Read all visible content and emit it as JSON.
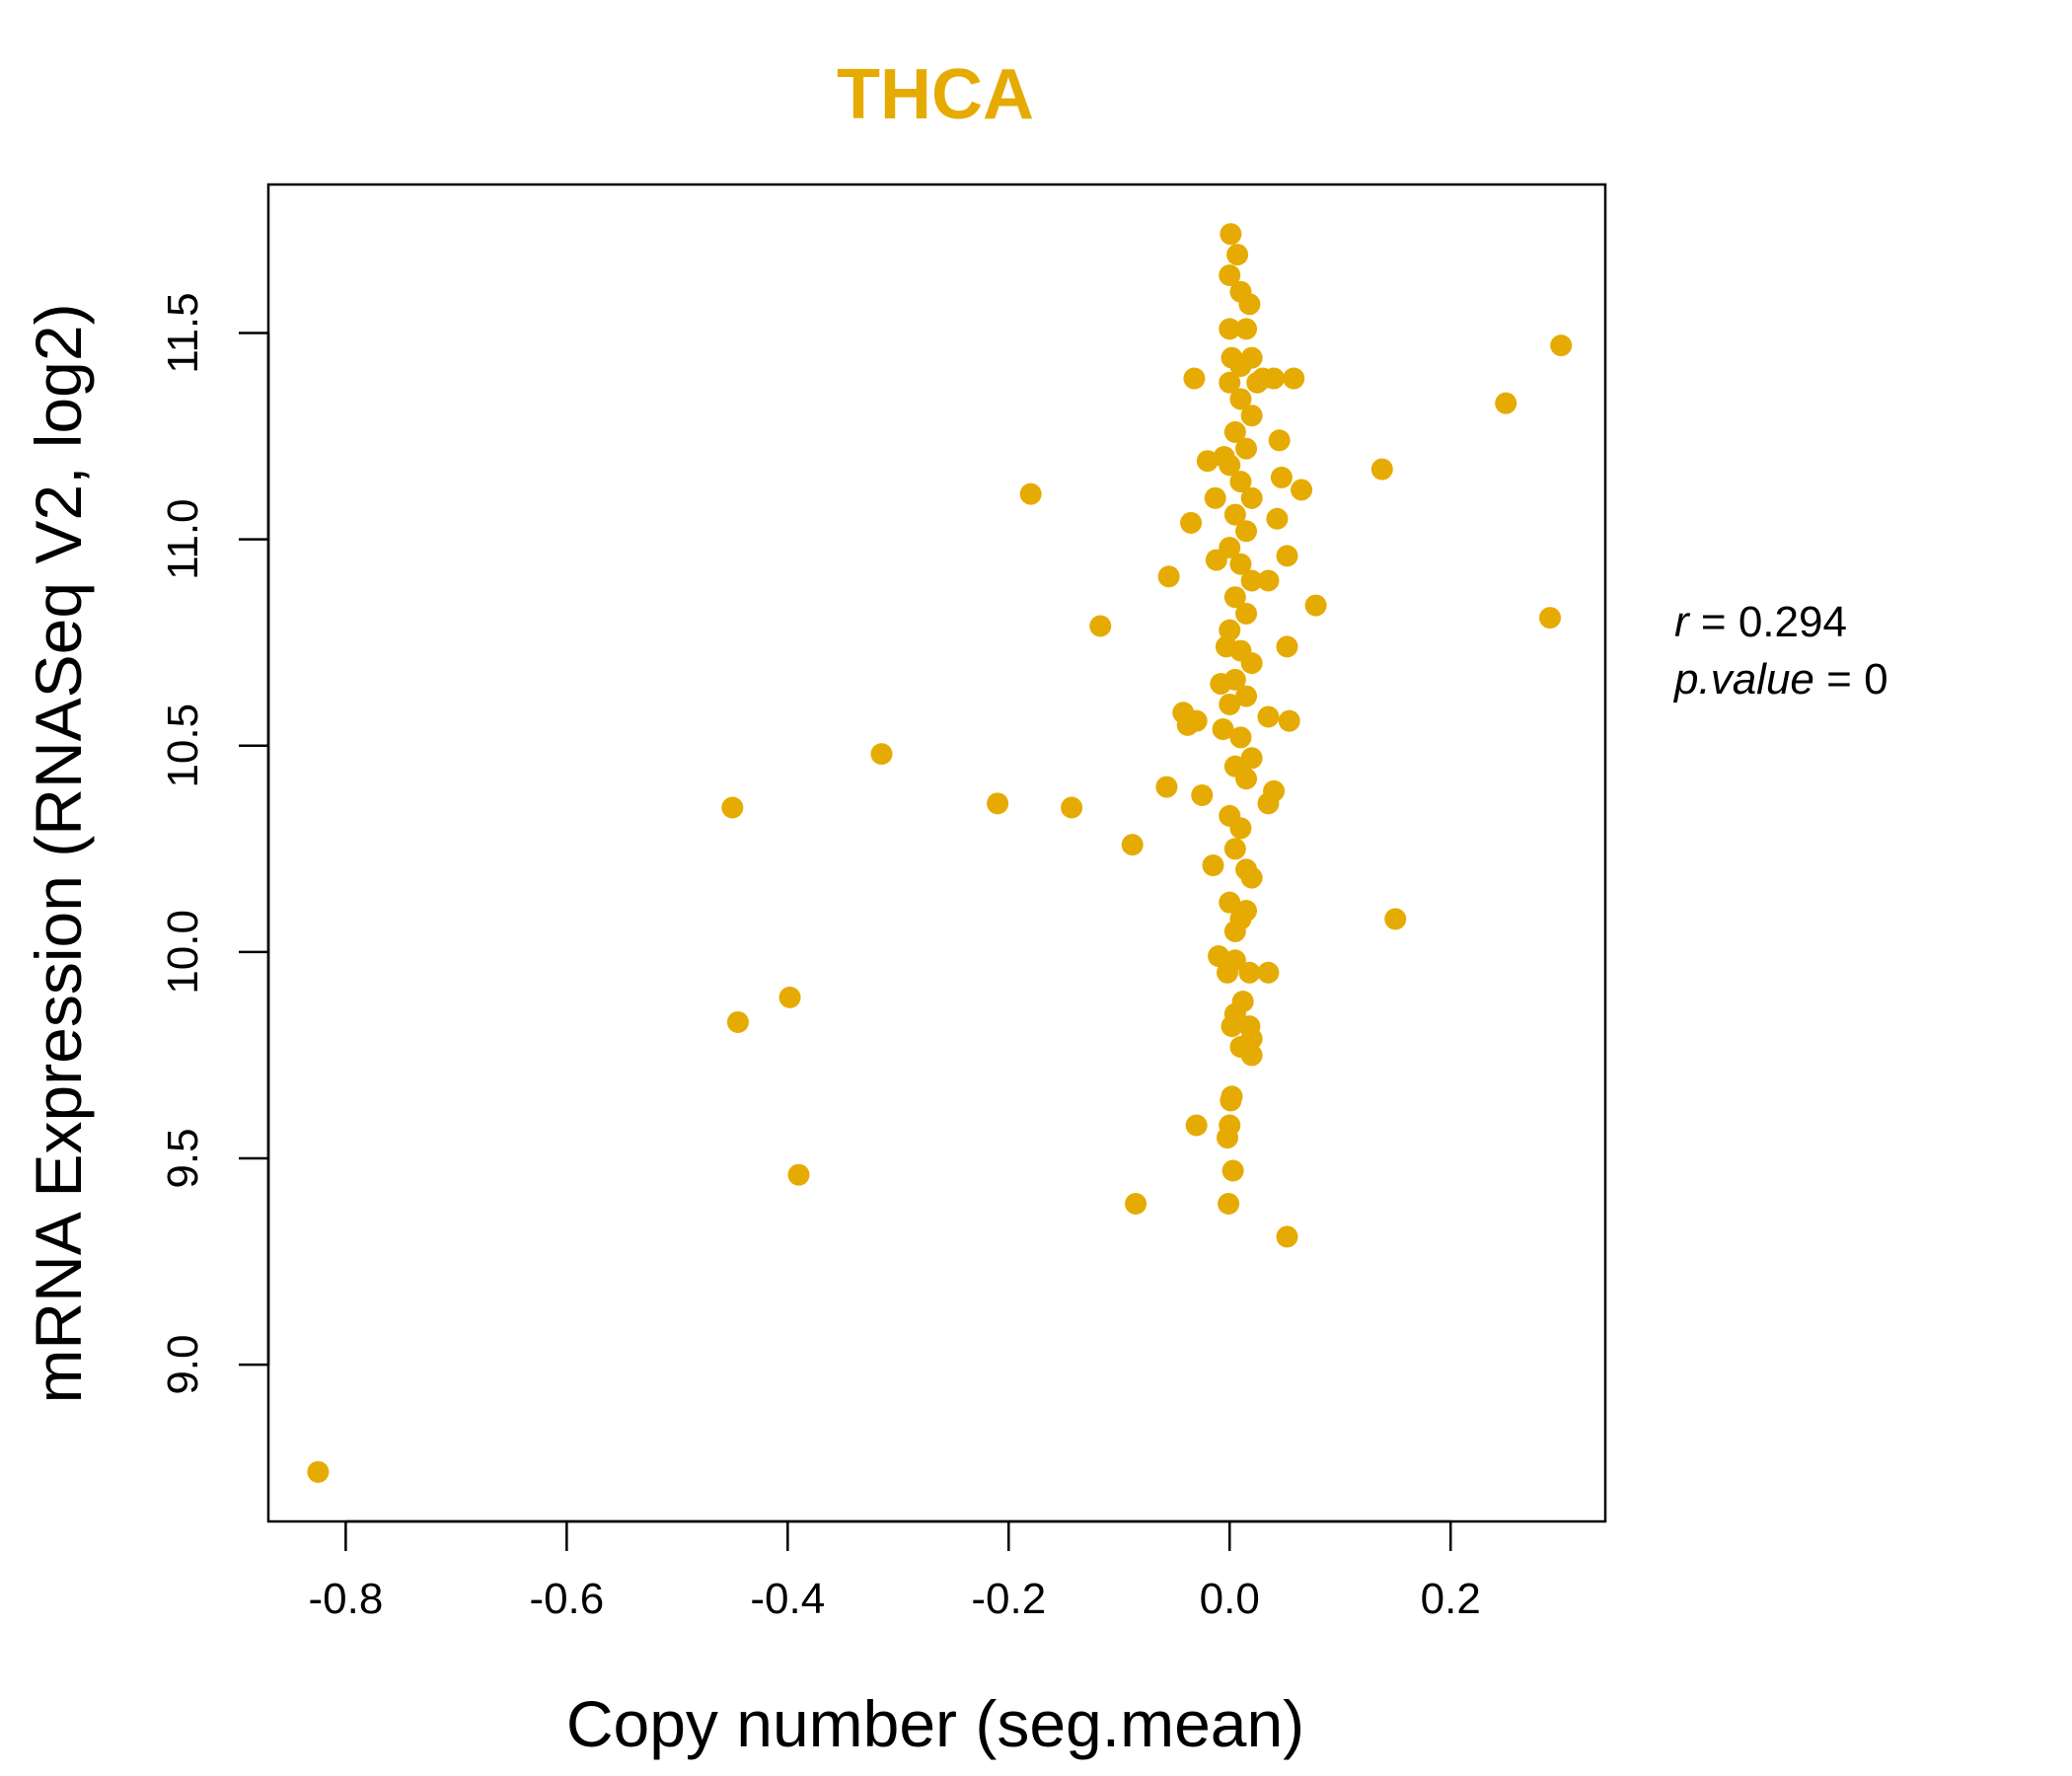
{
  "chart_data": {
    "type": "scatter",
    "title": "THCA",
    "xlabel": "Copy number (seg.mean)",
    "ylabel": "mRNA Expression (RNASeq V2, log2)",
    "xlim": [
      -0.87,
      0.34
    ],
    "ylim": [
      8.62,
      11.86
    ],
    "x_ticks": [
      -0.8,
      -0.6,
      -0.4,
      -0.2,
      0.0,
      0.2
    ],
    "x_tick_labels": [
      "-0.8",
      "-0.6",
      "-0.4",
      "-0.2",
      "0.0",
      "0.2"
    ],
    "y_ticks": [
      9.0,
      9.5,
      10.0,
      10.5,
      11.0,
      11.5
    ],
    "y_tick_labels": [
      "9.0",
      "9.5",
      "10.0",
      "10.5",
      "11.0",
      "11.5"
    ],
    "grid": false,
    "legend": "none",
    "point_color": "#E6AB02",
    "stats": {
      "r_symbol": "r",
      "r_value": "0.294",
      "p_symbol": "p.value",
      "p_value": "0",
      "equals": "="
    },
    "series": [
      {
        "points": [
          [
            -0.825,
            8.74
          ],
          [
            -0.45,
            10.35
          ],
          [
            -0.445,
            9.83
          ],
          [
            -0.398,
            9.89
          ],
          [
            -0.39,
            9.46
          ],
          [
            -0.315,
            10.48
          ],
          [
            -0.21,
            10.36
          ],
          [
            -0.18,
            11.11
          ],
          [
            -0.143,
            10.35
          ],
          [
            -0.117,
            10.79
          ],
          [
            -0.088,
            10.26
          ],
          [
            -0.085,
            9.39
          ],
          [
            -0.055,
            10.91
          ],
          [
            -0.057,
            10.4
          ],
          [
            -0.042,
            10.58
          ],
          [
            -0.038,
            10.55
          ],
          [
            -0.035,
            11.04
          ],
          [
            -0.032,
            11.39
          ],
          [
            -0.03,
            10.56
          ],
          [
            -0.03,
            9.58
          ],
          [
            -0.025,
            10.38
          ],
          [
            -0.02,
            11.19
          ],
          [
            -0.015,
            10.21
          ],
          [
            -0.013,
            11.1
          ],
          [
            -0.012,
            10.95
          ],
          [
            -0.01,
            9.99
          ],
          [
            -0.008,
            10.65
          ],
          [
            -0.006,
            10.54
          ],
          [
            -0.005,
            11.2
          ],
          [
            -0.003,
            10.74
          ],
          [
            -0.002,
            9.55
          ],
          [
            -0.001,
            9.39
          ],
          [
            0.0,
            9.58
          ],
          [
            0.001,
            9.64
          ],
          [
            0.002,
            9.65
          ],
          [
            0.003,
            9.47
          ],
          [
            0.0,
            11.64
          ],
          [
            0.001,
            11.74
          ],
          [
            0.0,
            11.51
          ],
          [
            0.002,
            11.44
          ],
          [
            0.007,
            11.69
          ],
          [
            0.01,
            11.6
          ],
          [
            0.015,
            11.51
          ],
          [
            0.018,
            11.57
          ],
          [
            0.02,
            11.44
          ],
          [
            0.025,
            11.38
          ],
          [
            0.03,
            11.39
          ],
          [
            0.04,
            11.39
          ],
          [
            0.058,
            11.39
          ],
          [
            0.045,
            11.24
          ],
          [
            0.047,
            11.15
          ],
          [
            0.065,
            11.12
          ],
          [
            0.043,
            11.05
          ],
          [
            0.052,
            10.96
          ],
          [
            0.035,
            10.9
          ],
          [
            0.078,
            10.84
          ],
          [
            0.052,
            10.74
          ],
          [
            0.035,
            10.57
          ],
          [
            0.054,
            10.56
          ],
          [
            0.04,
            10.39
          ],
          [
            0.035,
            10.36
          ],
          [
            0.02,
            10.18
          ],
          [
            0.015,
            10.1
          ],
          [
            0.018,
            9.95
          ],
          [
            0.035,
            9.95
          ],
          [
            0.012,
            9.88
          ],
          [
            0.018,
            9.82
          ],
          [
            0.02,
            9.79
          ],
          [
            0.02,
            9.75
          ],
          [
            0.01,
            9.77
          ],
          [
            0.005,
            9.85
          ],
          [
            0.002,
            9.82
          ],
          [
            -0.002,
            9.95
          ],
          [
            0.005,
            9.98
          ],
          [
            0.005,
            10.05
          ],
          [
            0.01,
            10.08
          ],
          [
            0.0,
            10.12
          ],
          [
            0.015,
            10.2
          ],
          [
            0.005,
            10.25
          ],
          [
            0.01,
            10.3
          ],
          [
            0.0,
            10.33
          ],
          [
            0.015,
            10.42
          ],
          [
            0.005,
            10.45
          ],
          [
            0.02,
            10.47
          ],
          [
            0.01,
            10.52
          ],
          [
            0.0,
            10.6
          ],
          [
            0.015,
            10.62
          ],
          [
            0.005,
            10.66
          ],
          [
            0.02,
            10.7
          ],
          [
            0.01,
            10.73
          ],
          [
            0.0,
            10.78
          ],
          [
            0.015,
            10.82
          ],
          [
            0.005,
            10.86
          ],
          [
            0.02,
            10.9
          ],
          [
            0.01,
            10.94
          ],
          [
            0.0,
            10.98
          ],
          [
            0.015,
            11.02
          ],
          [
            0.005,
            11.06
          ],
          [
            0.02,
            11.1
          ],
          [
            0.01,
            11.14
          ],
          [
            0.0,
            11.18
          ],
          [
            0.015,
            11.22
          ],
          [
            0.005,
            11.26
          ],
          [
            0.02,
            11.3
          ],
          [
            0.01,
            11.34
          ],
          [
            0.0,
            11.38
          ],
          [
            0.01,
            11.42
          ],
          [
            0.25,
            11.33
          ],
          [
            0.3,
            11.47
          ],
          [
            0.138,
            11.17
          ],
          [
            0.29,
            10.81
          ],
          [
            0.15,
            10.08
          ],
          [
            0.052,
            9.31
          ]
        ]
      }
    ]
  }
}
